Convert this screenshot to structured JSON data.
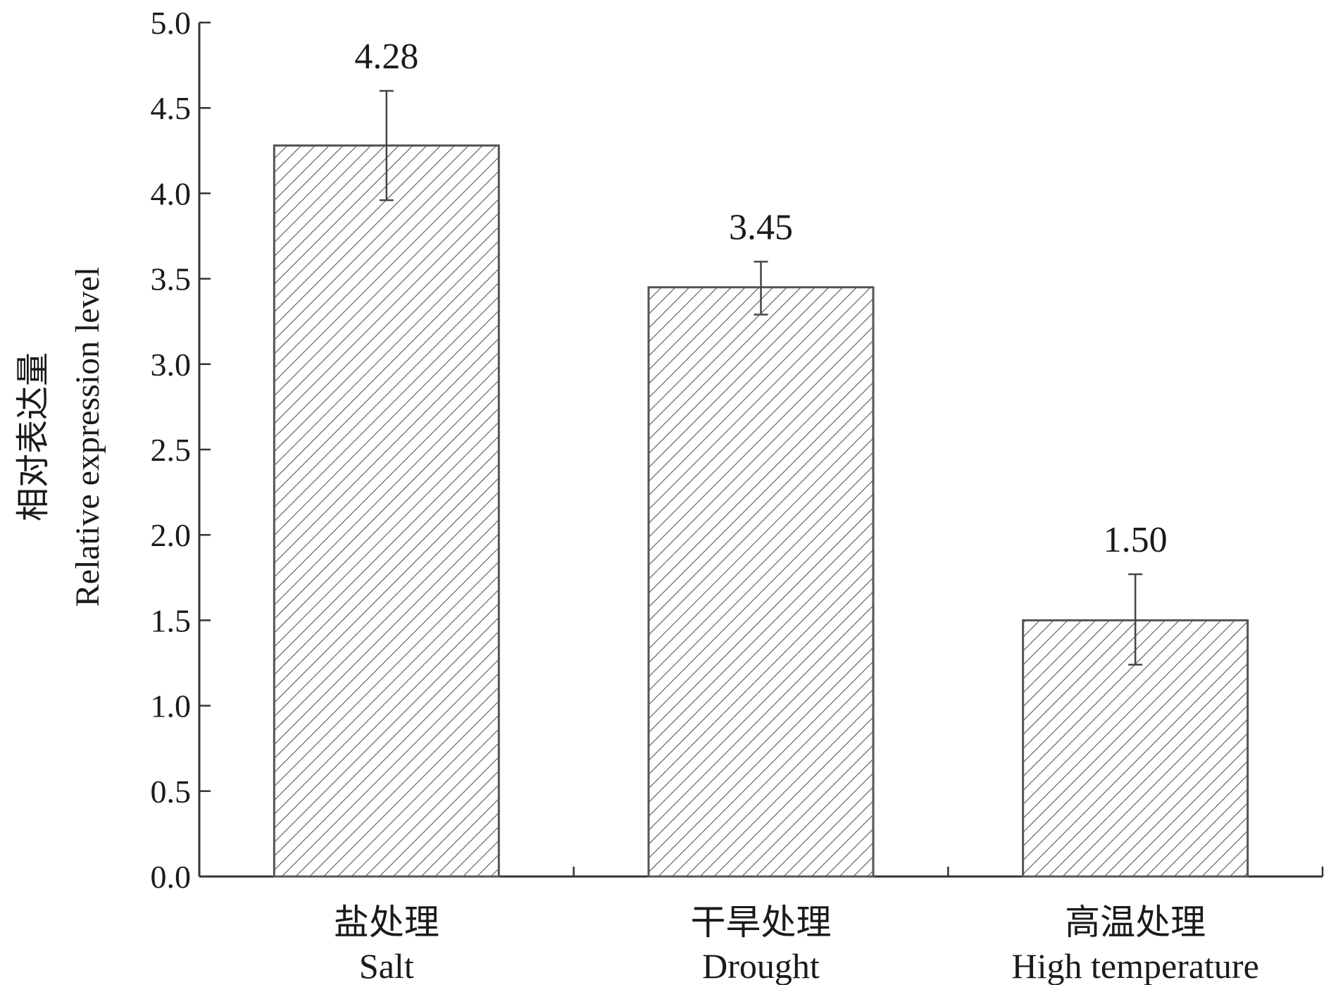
{
  "chart_data": {
    "type": "bar",
    "categories": [
      {
        "zh": "盐处理",
        "en": "Salt"
      },
      {
        "zh": "干旱处理",
        "en": "Drought"
      },
      {
        "zh": "高温处理",
        "en": "High temperature"
      }
    ],
    "values": [
      4.28,
      3.45,
      1.5
    ],
    "value_labels": [
      "4.28",
      "3.45",
      "1.50"
    ],
    "error_bars": [
      {
        "low": 3.96,
        "high": 4.6
      },
      {
        "low": 3.29,
        "high": 3.6
      },
      {
        "low": 1.24,
        "high": 1.77
      }
    ],
    "ylabel_zh": "相对表达量",
    "ylabel_en": "Relative expression level",
    "ylim": [
      0,
      5
    ],
    "yticks": [
      "0.0",
      "0.5",
      "1.0",
      "1.5",
      "2.0",
      "2.5",
      "3.0",
      "3.5",
      "4.0",
      "4.5",
      "5.0"
    ],
    "bar_fill": "hatched",
    "colors": {
      "bar_stroke": "#555555",
      "hatch": "#555555",
      "axis": "#333333",
      "error_bar": "#444444"
    },
    "grid": false,
    "legend": "none"
  }
}
